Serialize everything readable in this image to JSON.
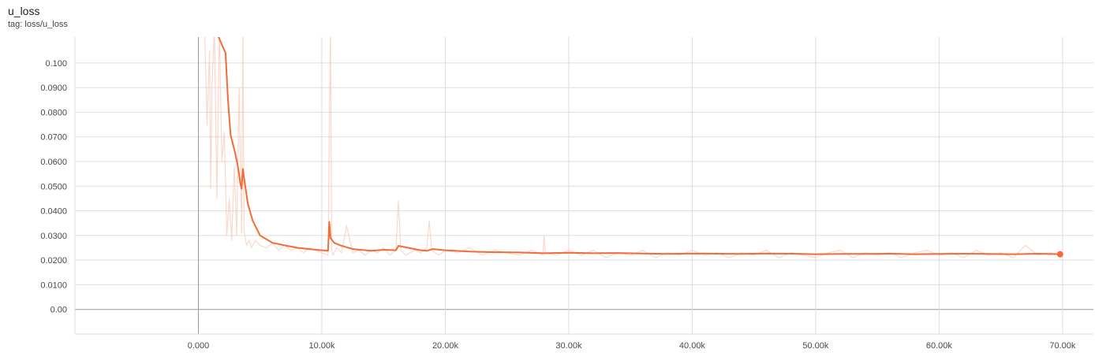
{
  "chart_title": "u_loss",
  "chart_tag": "tag: loss/u_loss",
  "chart_data": {
    "type": "line",
    "title": "u_loss",
    "subtitle": "tag: loss/u_loss",
    "xlabel": "",
    "ylabel": "",
    "xlim": [
      -10000,
      72500
    ],
    "ylim": [
      -0.01,
      0.1105
    ],
    "grid": true,
    "x_ticks": [
      0,
      10000,
      20000,
      30000,
      40000,
      50000,
      60000,
      70000
    ],
    "x_tick_labels": [
      "0.000",
      "10.00k",
      "20.00k",
      "30.00k",
      "40.00k",
      "50.00k",
      "60.00k",
      "70.00k"
    ],
    "y_ticks": [
      0.0,
      0.01,
      0.02,
      0.03,
      0.04,
      0.05,
      0.06,
      0.07,
      0.08,
      0.09,
      0.1
    ],
    "y_tick_labels": [
      "0.00",
      "0.0100",
      "0.0200",
      "0.0300",
      "0.0400",
      "0.0500",
      "0.0600",
      "0.0700",
      "0.0800",
      "0.0900",
      "0.100"
    ],
    "colors": {
      "smoothed": "#f26b38",
      "raw": "#f8c7b4",
      "grid": "#dddddd",
      "axis": "#999999"
    },
    "series": [
      {
        "role": "smoothed",
        "x": [
          500,
          1500,
          2200,
          2400,
          2600,
          2800,
          3000,
          3200,
          3400,
          3500,
          3600,
          3800,
          4000,
          4400,
          5000,
          6000,
          7000,
          8000,
          9000,
          10000,
          10500,
          10600,
          10700,
          11000,
          11500,
          12500,
          14000,
          15000,
          16000,
          16200,
          17000,
          18000,
          18500,
          19000,
          20000,
          22000,
          24000,
          26000,
          28000,
          30000,
          32000,
          34000,
          36000,
          38000,
          40000,
          42000,
          44000,
          46000,
          48000,
          50000,
          52000,
          54000,
          56000,
          58000,
          60000,
          62000,
          64000,
          66000,
          68000,
          69800
        ],
        "y": [
          0.115,
          0.112,
          0.104,
          0.085,
          0.071,
          0.067,
          0.063,
          0.058,
          0.051,
          0.049,
          0.057,
          0.05,
          0.043,
          0.036,
          0.03,
          0.027,
          0.026,
          0.025,
          0.0245,
          0.024,
          0.0238,
          0.0355,
          0.029,
          0.027,
          0.026,
          0.0245,
          0.0238,
          0.0242,
          0.024,
          0.0258,
          0.025,
          0.024,
          0.0238,
          0.0245,
          0.024,
          0.0235,
          0.0232,
          0.0231,
          0.0228,
          0.023,
          0.0228,
          0.0229,
          0.0227,
          0.0225,
          0.0227,
          0.0226,
          0.0225,
          0.0227,
          0.0226,
          0.0224,
          0.0225,
          0.0225,
          0.0226,
          0.0224,
          0.0225,
          0.0226,
          0.0225,
          0.0224,
          0.0226,
          0.0224
        ]
      },
      {
        "role": "raw",
        "x": [
          500,
          700,
          900,
          1000,
          1100,
          1300,
          1500,
          1700,
          1900,
          2100,
          2300,
          2500,
          2700,
          2900,
          3100,
          3300,
          3500,
          3600,
          3700,
          3900,
          4100,
          4300,
          4600,
          5000,
          5500,
          6000,
          6500,
          7000,
          7500,
          8000,
          8500,
          9000,
          9500,
          10000,
          10500,
          10700,
          10800,
          10900,
          11200,
          11600,
          12000,
          12500,
          13000,
          13500,
          14000,
          14500,
          15000,
          15500,
          16000,
          16200,
          16400,
          16800,
          17500,
          18000,
          18500,
          18700,
          18900,
          19500,
          20000,
          21000,
          22000,
          23000,
          24000,
          25000,
          26000,
          27000,
          27900,
          28000,
          28100,
          29000,
          30000,
          31000,
          32000,
          33000,
          34000,
          35000,
          36000,
          37000,
          38000,
          39000,
          40000,
          41000,
          42000,
          43000,
          44000,
          45000,
          46000,
          47000,
          48000,
          49000,
          50000,
          51000,
          52000,
          53000,
          54000,
          55000,
          56000,
          57000,
          58000,
          59000,
          60000,
          61000,
          62000,
          63000,
          64000,
          65000,
          66000,
          67000,
          68000,
          69000,
          69800
        ],
        "y": [
          0.115,
          0.075,
          0.105,
          0.049,
          0.09,
          0.115,
          0.045,
          0.115,
          0.06,
          0.072,
          0.03,
          0.045,
          0.028,
          0.058,
          0.03,
          0.09,
          0.031,
          0.115,
          0.032,
          0.026,
          0.028,
          0.025,
          0.028,
          0.026,
          0.025,
          0.027,
          0.024,
          0.026,
          0.024,
          0.025,
          0.023,
          0.025,
          0.024,
          0.023,
          0.022,
          0.115,
          0.024,
          0.022,
          0.025,
          0.023,
          0.034,
          0.023,
          0.024,
          0.022,
          0.024,
          0.023,
          0.025,
          0.022,
          0.024,
          0.044,
          0.024,
          0.022,
          0.024,
          0.023,
          0.025,
          0.036,
          0.024,
          0.022,
          0.024,
          0.023,
          0.025,
          0.022,
          0.024,
          0.023,
          0.022,
          0.024,
          0.022,
          0.03,
          0.023,
          0.022,
          0.024,
          0.022,
          0.024,
          0.021,
          0.023,
          0.022,
          0.024,
          0.021,
          0.023,
          0.022,
          0.024,
          0.022,
          0.023,
          0.021,
          0.023,
          0.022,
          0.024,
          0.021,
          0.023,
          0.022,
          0.021,
          0.023,
          0.024,
          0.021,
          0.023,
          0.022,
          0.023,
          0.021,
          0.023,
          0.024,
          0.022,
          0.023,
          0.021,
          0.024,
          0.022,
          0.023,
          0.021,
          0.026,
          0.022,
          0.023,
          0.0224
        ]
      }
    ]
  }
}
